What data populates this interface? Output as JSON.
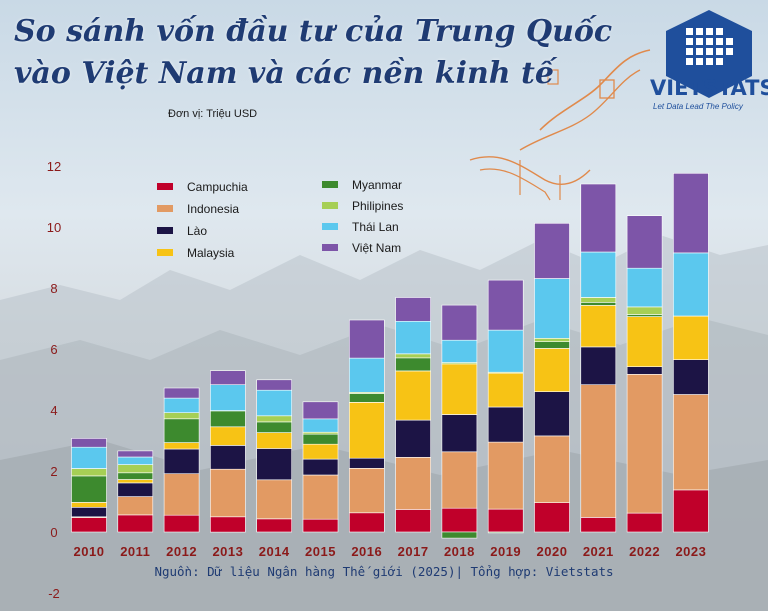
{
  "title_line1": "So sánh vốn đầu tư của Trung Quốc",
  "title_line2": "vào Việt Nam và các nền kinh tế",
  "unit": "Đơn vị: Triệu USD",
  "brand": "VIETSTATS",
  "tagline": "Let Data Lead The Policy",
  "source": "Nguồn: Dữ liệu Ngân hàng Thế giới (2025)| Tổng hợp: Vietstats",
  "colors": {
    "title": "#1f3b73",
    "brand": "#1f4f9c",
    "axis_labels": "#8b1a1a"
  },
  "chart_data": {
    "type": "bar",
    "stacked": true,
    "categories": [
      "2010",
      "2011",
      "2012",
      "2013",
      "2014",
      "2015",
      "2016",
      "2017",
      "2018",
      "2019",
      "2020",
      "2021",
      "2022",
      "2023"
    ],
    "ylim": [
      -2,
      12
    ],
    "yticks": [
      -2,
      0,
      2,
      4,
      6,
      8,
      10,
      12
    ],
    "grid": false,
    "legend_position": "top-left",
    "series": [
      {
        "name": "Campuchia",
        "color": "#c0002a",
        "values": [
          0.47,
          0.56,
          0.55,
          0.5,
          0.43,
          0.42,
          0.63,
          0.74,
          0.78,
          0.75,
          0.96,
          0.48,
          0.62,
          1.38
        ]
      },
      {
        "name": "Indonesia",
        "color": "#e29a63",
        "values": [
          0.03,
          0.6,
          1.36,
          1.56,
          1.28,
          1.45,
          1.46,
          1.71,
          1.85,
          2.2,
          2.19,
          4.35,
          4.55,
          3.13
        ]
      },
      {
        "name": "Lào",
        "color": "#1c1445",
        "values": [
          0.31,
          0.45,
          0.81,
          0.78,
          1.03,
          0.52,
          0.33,
          1.22,
          1.22,
          1.15,
          1.45,
          1.24,
          0.25,
          1.14
        ]
      },
      {
        "name": "Malaysia",
        "color": "#f7c315",
        "values": [
          0.16,
          0.11,
          0.21,
          0.61,
          0.52,
          0.49,
          1.83,
          1.61,
          1.66,
          1.11,
          1.42,
          1.36,
          1.64,
          1.43
        ]
      },
      {
        "name": "Myanmar",
        "color": "#3d8a2e",
        "values": [
          0.87,
          0.22,
          0.78,
          0.52,
          0.35,
          0.33,
          0.29,
          0.43,
          -0.2,
          -0.03,
          0.22,
          0.1,
          0.07,
          0.0
        ]
      },
      {
        "name": "Philipines",
        "color": "#a6cf55",
        "values": [
          0.24,
          0.27,
          0.2,
          0.01,
          0.2,
          0.06,
          0.04,
          0.13,
          0.05,
          0.03,
          0.11,
          0.16,
          0.25,
          0.0
        ]
      },
      {
        "name": "Thái Lan",
        "color": "#5bc8ee",
        "values": [
          0.7,
          0.25,
          0.48,
          0.85,
          0.84,
          0.44,
          1.12,
          1.07,
          0.73,
          1.38,
          1.96,
          1.49,
          1.27,
          2.07
        ]
      },
      {
        "name": "Việt Nam",
        "color": "#7d55a8",
        "values": [
          0.29,
          0.2,
          0.33,
          0.46,
          0.34,
          0.56,
          1.25,
          0.78,
          1.15,
          1.64,
          1.81,
          2.23,
          1.72,
          2.61
        ]
      }
    ]
  }
}
